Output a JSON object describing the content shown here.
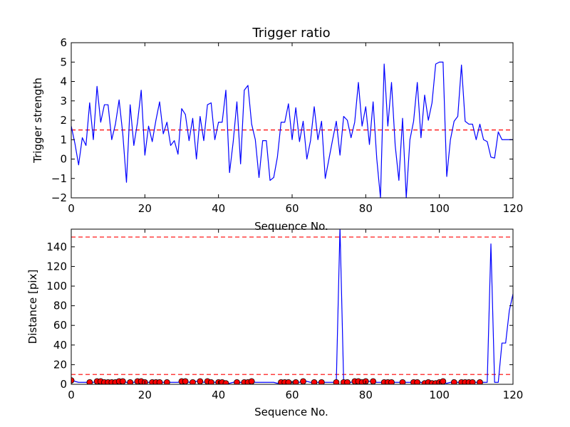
{
  "chart_data": [
    {
      "type": "line",
      "title": "Trigger ratio",
      "xlabel": "Sequence No.",
      "ylabel": "Trigger strength",
      "xlim": [
        0,
        120
      ],
      "ylim": [
        -2,
        6
      ],
      "xticks": [
        0,
        20,
        40,
        60,
        80,
        100,
        120
      ],
      "yticks": [
        -2,
        -1,
        0,
        1,
        2,
        3,
        4,
        5,
        6
      ],
      "grid": false,
      "threshold": 1.5,
      "series": [
        {
          "color": "#0000ff",
          "x": [
            0,
            1,
            2,
            3,
            4,
            5,
            6,
            7,
            8,
            9,
            10,
            11,
            12,
            13,
            14,
            15,
            16,
            17,
            18,
            19,
            20,
            21,
            22,
            23,
            24,
            25,
            26,
            27,
            28,
            29,
            30,
            31,
            32,
            33,
            34,
            35,
            36,
            37,
            38,
            39,
            40,
            41,
            42,
            43,
            44,
            45,
            46,
            47,
            48,
            49,
            50,
            51,
            52,
            53,
            54,
            55,
            56,
            57,
            58,
            59,
            60,
            61,
            62,
            63,
            64,
            65,
            66,
            67,
            68,
            69,
            70,
            71,
            72,
            73,
            74,
            75,
            76,
            77,
            78,
            79,
            80,
            81,
            82,
            83,
            84,
            85,
            86,
            87,
            88,
            89,
            90,
            91,
            92,
            93,
            94,
            95,
            96,
            97,
            98,
            99,
            100,
            101,
            102,
            103,
            104,
            105,
            106,
            107,
            108,
            109,
            110,
            111,
            112,
            113,
            114,
            115,
            116,
            117,
            118,
            119,
            120
          ],
          "y": [
            1.7,
            0.8,
            -0.3,
            1.1,
            0.7,
            2.9,
            1.0,
            3.75,
            1.9,
            2.8,
            2.8,
            1.0,
            1.8,
            3.05,
            1.3,
            -1.2,
            2.8,
            0.7,
            1.9,
            3.55,
            0.2,
            1.7,
            0.9,
            2.0,
            2.95,
            1.3,
            1.9,
            0.7,
            0.95,
            0.25,
            2.6,
            2.3,
            0.95,
            2.1,
            0.0,
            2.2,
            0.95,
            2.8,
            2.9,
            1.0,
            1.9,
            1.9,
            3.55,
            -0.7,
            0.9,
            2.95,
            -0.25,
            3.55,
            3.8,
            1.8,
            1.0,
            -0.95,
            0.95,
            0.95,
            -1.1,
            -0.95,
            0.1,
            1.9,
            1.9,
            2.85,
            1.0,
            2.65,
            0.9,
            1.95,
            0.0,
            0.95,
            2.7,
            1.0,
            1.95,
            -1.0,
            0.0,
            1.0,
            1.95,
            0.2,
            2.2,
            2.0,
            1.1,
            1.9,
            3.95,
            1.7,
            2.7,
            0.75,
            2.95,
            0.0,
            -2.0,
            4.9,
            1.7,
            3.95,
            0.7,
            -1.1,
            2.1,
            -2.0,
            1.0,
            1.95,
            3.95,
            1.1,
            3.3,
            2.0,
            2.9,
            4.9,
            5.0,
            5.0,
            -0.9,
            1.0,
            1.95,
            2.2,
            4.85,
            1.95,
            1.8,
            1.8,
            1.0,
            1.8,
            1.0,
            0.9,
            0.1,
            0.05,
            1.4,
            1.0,
            1.0,
            1.0,
            1.0
          ]
        }
      ]
    },
    {
      "type": "line",
      "title": "",
      "xlabel": "Sequence No.",
      "ylabel": "Distance [pix]",
      "xlim": [
        0,
        120
      ],
      "ylim": [
        0,
        158
      ],
      "xticks": [
        0,
        20,
        40,
        60,
        80,
        100,
        120
      ],
      "yticks": [
        0,
        20,
        40,
        60,
        80,
        100,
        120,
        140
      ],
      "grid": false,
      "thresholds": [
        10,
        150
      ],
      "series": [
        {
          "color": "#0000ff",
          "x": [
            0,
            1,
            2,
            3,
            4,
            5,
            6,
            7,
            8,
            9,
            10,
            11,
            12,
            13,
            14,
            15,
            16,
            17,
            18,
            19,
            20,
            21,
            22,
            23,
            24,
            25,
            26,
            27,
            28,
            29,
            30,
            31,
            32,
            33,
            34,
            35,
            36,
            37,
            38,
            39,
            40,
            41,
            42,
            43,
            44,
            45,
            46,
            47,
            48,
            49,
            50,
            51,
            52,
            53,
            54,
            55,
            56,
            57,
            58,
            59,
            60,
            61,
            62,
            63,
            64,
            65,
            66,
            67,
            68,
            69,
            70,
            71,
            72,
            73,
            74,
            75,
            76,
            77,
            78,
            79,
            80,
            81,
            82,
            83,
            84,
            85,
            86,
            87,
            88,
            89,
            90,
            91,
            92,
            93,
            94,
            95,
            96,
            97,
            98,
            99,
            100,
            101,
            102,
            103,
            104,
            105,
            106,
            107,
            108,
            109,
            110,
            111,
            112,
            113,
            114,
            115,
            116,
            117,
            118,
            119,
            120
          ],
          "y": [
            5,
            3,
            2,
            2,
            2,
            2,
            2,
            3,
            3,
            3,
            2,
            2,
            2,
            3,
            3,
            2,
            1,
            2,
            3,
            3,
            2,
            2,
            2,
            1,
            2,
            2,
            2,
            2,
            2,
            2,
            3,
            3,
            2,
            3,
            3,
            3,
            2,
            3,
            3,
            2,
            2,
            2,
            1,
            1,
            2,
            2,
            2,
            2,
            3,
            3,
            2,
            2,
            2,
            2,
            2,
            2,
            1,
            2,
            2,
            2,
            2,
            3,
            2,
            3,
            3,
            2,
            2,
            2,
            2,
            2,
            2,
            2,
            2,
            160,
            2,
            2,
            2,
            3,
            3,
            3,
            3,
            3,
            3,
            2,
            2,
            2,
            2,
            2,
            2,
            2,
            2,
            2,
            2,
            2,
            2,
            2,
            1,
            2,
            1,
            1,
            2,
            2,
            1,
            2,
            2,
            2,
            2,
            2,
            2,
            2,
            2,
            2,
            2,
            2,
            143,
            2,
            2,
            42,
            42,
            75,
            92
          ]
        },
        {
          "name": "",
          "color": "#ff0000",
          "marker": "circle",
          "x": [
            0,
            5,
            7,
            8,
            9,
            10,
            11,
            12,
            13,
            14,
            16,
            18,
            19,
            20,
            22,
            23,
            24,
            26,
            30,
            31,
            33,
            35,
            37,
            38,
            40,
            41,
            42,
            45,
            47,
            48,
            49,
            57,
            58,
            59,
            61,
            63,
            66,
            68,
            72,
            74,
            75,
            77,
            78,
            79,
            80,
            82,
            85,
            86,
            87,
            90,
            93,
            94,
            96,
            97,
            98,
            99,
            100,
            101,
            104,
            106,
            107,
            108,
            109,
            111
          ],
          "y": [
            4,
            2,
            3,
            3,
            2,
            2,
            2,
            2,
            3,
            3,
            2,
            3,
            3,
            2,
            2,
            2,
            2,
            2,
            3,
            3,
            2,
            3,
            3,
            2,
            2,
            2,
            1,
            2,
            2,
            2,
            3,
            2,
            2,
            2,
            2,
            3,
            2,
            2,
            2,
            2,
            2,
            3,
            3,
            2,
            3,
            3,
            2,
            2,
            2,
            2,
            2,
            2,
            1,
            2,
            1,
            1,
            2,
            3,
            2,
            2,
            2,
            2,
            2,
            2
          ]
        }
      ]
    }
  ]
}
